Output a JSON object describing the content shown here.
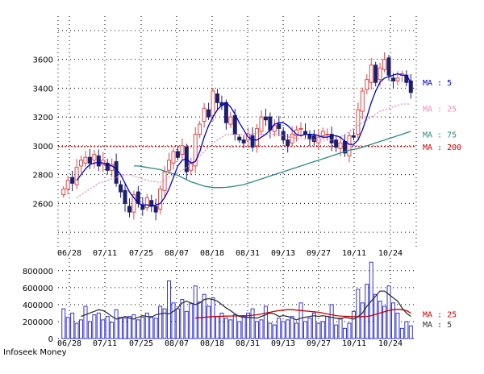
{
  "brand": "Infoseek Money",
  "colors": {
    "up": "#e04848",
    "down": "#1e1e6e",
    "ma5": "#0000cc",
    "ma25": "#f08cbc",
    "ma75": "#2a8a82",
    "ma200": "#cc0000",
    "vol_bar": "#3232d8",
    "vol_ma25": "#cc0000",
    "vol_ma5": "#333333",
    "grid": "#000000"
  },
  "chart_data": [
    {
      "type": "candlestick",
      "x_ticks": [
        "06/28",
        "07/11",
        "07/25",
        "08/07",
        "08/18",
        "08/31",
        "09/13",
        "09/27",
        "10/11",
        "10/24"
      ],
      "y_ticks": [
        2600,
        2800,
        3000,
        3200,
        3400,
        3600
      ],
      "ylim": [
        2300,
        3900
      ],
      "grid": true,
      "legend": [
        {
          "label": "MA : 5",
          "key": "ma5",
          "y": 3440
        },
        {
          "label": "MA : 25",
          "key": "ma25",
          "y": 3260
        },
        {
          "label": "MA : 75",
          "key": "ma75",
          "y": 3080
        },
        {
          "label": "MA : 200",
          "key": "ma200",
          "y": 2995
        }
      ],
      "closes": [
        2700,
        2760,
        2740,
        2850,
        2900,
        2920,
        2880,
        2940,
        2860,
        2900,
        2830,
        2870,
        2740,
        2680,
        2600,
        2540,
        2660,
        2600,
        2560,
        2640,
        2580,
        2540,
        2700,
        2820,
        2900,
        2960,
        2920,
        3000,
        2820,
        2880,
        3080,
        3150,
        3260,
        3200,
        3380,
        3300,
        3280,
        3160,
        3200,
        3080,
        3040,
        3020,
        3080,
        2990,
        3120,
        3200,
        3180,
        3110,
        3140,
        3120,
        3040,
        3000,
        3080,
        3110,
        3120,
        3080,
        3050,
        3030,
        3060,
        3100,
        3080,
        3020,
        2990,
        3020,
        2950,
        3070,
        3060,
        3250,
        3380,
        3460,
        3560,
        3440,
        3540,
        3600,
        3490,
        3450,
        3470,
        3500,
        3440,
        3370
      ],
      "ma_start_index": 2,
      "ma5": [
        2760,
        2800,
        2840,
        2870,
        2880,
        2885,
        2880,
        2870,
        2860,
        2840,
        2800,
        2740,
        2680,
        2640,
        2600,
        2590,
        2590,
        2580,
        2590,
        2600,
        2640,
        2700,
        2780,
        2860,
        2900,
        2910,
        2880,
        2890,
        2960,
        3060,
        3140,
        3200,
        3250,
        3280,
        3300,
        3270,
        3220,
        3160,
        3110,
        3060,
        3040,
        3040,
        3060,
        3080,
        3110,
        3150,
        3160,
        3160,
        3140,
        3110,
        3080,
        3070,
        3080,
        3080,
        3080,
        3070,
        3060,
        3060,
        3070,
        3070,
        3060,
        3030,
        3010,
        3010,
        3040,
        3110,
        3200,
        3300,
        3380,
        3440,
        3470,
        3480,
        3490,
        3500,
        3490,
        3490,
        3440
      ],
      "ma25": [
        2640,
        2660,
        2680,
        2700,
        2720,
        2740,
        2750,
        2760,
        2770,
        2780,
        2790,
        2800,
        2800,
        2790,
        2780,
        2770,
        2760,
        2755,
        2750,
        2745,
        2760,
        2780,
        2800,
        2820,
        2830,
        2850,
        2870,
        2900,
        2930,
        2960,
        2990,
        3020,
        3040,
        3060,
        3080,
        3080,
        3080,
        3080,
        3080,
        3080,
        3080,
        3090,
        3080,
        3080,
        3080,
        3080,
        3080,
        3070,
        3060,
        3060,
        3050,
        3050,
        3050,
        3040,
        3040,
        3040,
        3040,
        3040,
        3040,
        3050,
        3060,
        3080,
        3100,
        3120,
        3140,
        3160,
        3180,
        3200,
        3220,
        3240,
        3250,
        3260,
        3270,
        3280,
        3290,
        3290,
        3290
      ],
      "ma75": [
        2860,
        2860,
        2855,
        2850,
        2845,
        2840,
        2835,
        2825,
        2815,
        2805,
        2795,
        2780,
        2765,
        2750,
        2740,
        2730,
        2720,
        2715,
        2710,
        2710,
        2710,
        2712,
        2715,
        2720,
        2725,
        2730,
        2740,
        2750,
        2760,
        2770,
        2780,
        2790,
        2800,
        2810,
        2820,
        2830,
        2840,
        2850,
        2860,
        2870,
        2880,
        2890,
        2900,
        2910,
        2920,
        2930,
        2940,
        2950,
        2960,
        2970,
        2975,
        2980,
        2990,
        3000,
        3010,
        3020,
        3030,
        3040,
        3050,
        3060,
        3070,
        3080,
        3090,
        3100
      ],
      "ma200": 2995
    },
    {
      "type": "bar",
      "y_ticks": [
        0,
        200000,
        400000,
        600000,
        800000
      ],
      "y_tick_labels": [
        "0",
        "200000",
        "400000",
        "600000",
        "800000"
      ],
      "ylim": [
        0,
        950000
      ],
      "legend": [
        {
          "label": "MA : 25",
          "key": "vol_ma25",
          "y": 290000
        },
        {
          "label": "MA : 5",
          "key": "vol_ma5",
          "y": 170000
        }
      ],
      "values": [
        350000,
        250000,
        300000,
        180000,
        220000,
        380000,
        200000,
        280000,
        300000,
        220000,
        260000,
        190000,
        340000,
        250000,
        240000,
        260000,
        280000,
        220000,
        250000,
        300000,
        260000,
        240000,
        380000,
        350000,
        680000,
        420000,
        350000,
        460000,
        320000,
        410000,
        620000,
        430000,
        520000,
        380000,
        480000,
        260000,
        300000,
        240000,
        220000,
        280000,
        200000,
        260000,
        300000,
        350000,
        200000,
        220000,
        380000,
        180000,
        160000,
        240000,
        200000,
        220000,
        260000,
        180000,
        420000,
        200000,
        240000,
        300000,
        180000,
        200000,
        260000,
        400000,
        160000,
        240000,
        120000,
        180000,
        320000,
        580000,
        420000,
        640000,
        900000,
        520000,
        440000,
        380000,
        620000,
        420000,
        300000,
        120000,
        200000,
        150000
      ],
      "ma25": [
        240000,
        245000,
        250000,
        255000,
        258000,
        260000,
        262000,
        264000,
        265000,
        266000,
        268000,
        270000,
        270000,
        275000,
        280000,
        290000,
        300000,
        310000,
        320000,
        330000,
        335000,
        340000,
        340000,
        335000,
        330000,
        325000,
        320000,
        315000,
        310000,
        300000,
        290000,
        280000,
        270000,
        265000,
        262000,
        260000,
        258000,
        256000,
        258000,
        260000,
        270000,
        285000,
        300000,
        315000,
        330000,
        340000,
        345000,
        340000,
        330000,
        300000
      ],
      "ma5": [
        260000,
        280000,
        300000,
        320000,
        340000,
        330000,
        300000,
        260000,
        230000,
        240000,
        260000,
        240000,
        230000,
        250000,
        270000,
        260000,
        250000,
        280000,
        290000,
        300000,
        290000,
        320000,
        360000,
        420000,
        440000,
        420000,
        400000,
        420000,
        460000,
        470000,
        460000,
        440000,
        400000,
        360000,
        330000,
        290000,
        260000,
        250000,
        250000,
        245000,
        240000,
        260000,
        280000,
        300000,
        290000,
        260000,
        270000,
        260000,
        240000,
        220000,
        240000,
        250000,
        260000,
        270000,
        260000,
        270000,
        260000,
        250000,
        240000,
        230000,
        250000,
        240000,
        230000,
        260000,
        300000,
        380000,
        440000,
        500000,
        560000,
        560000,
        520000,
        480000,
        440000,
        360000,
        300000,
        260000
      ]
    }
  ]
}
